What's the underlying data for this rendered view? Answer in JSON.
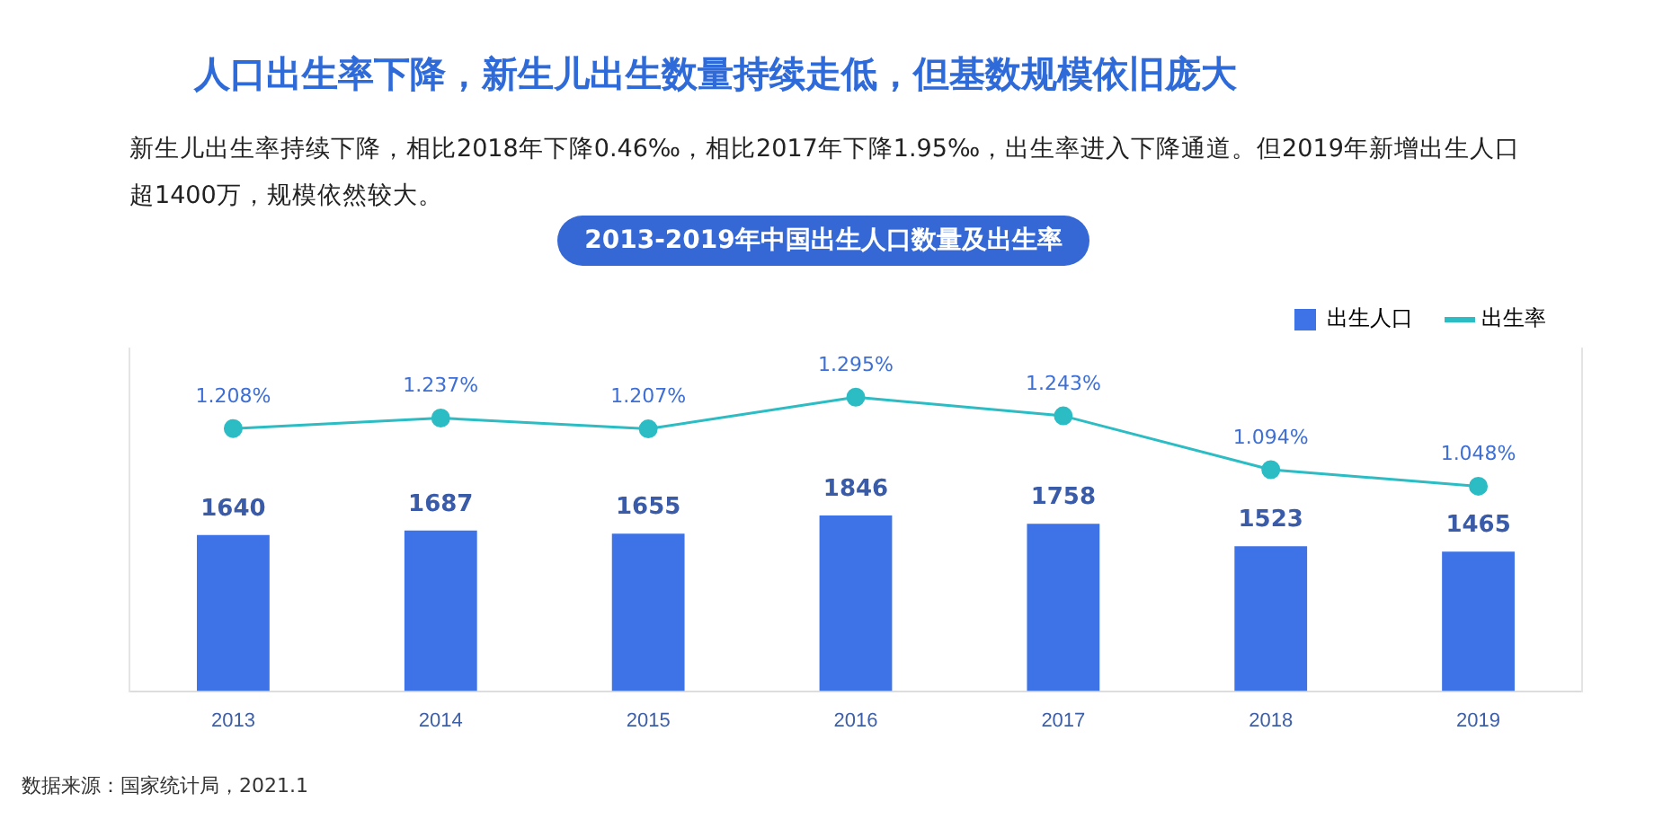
{
  "chart_data": {
    "type": "bar",
    "title": "人口出生率下降，新生儿出生数量持续走低，但基数规模依旧庞大",
    "subtitle": "新生儿出生率持续下降，相比2018年下降0.46‰，相比2017年下降1.95‰，出生率进入下降通道。但2019年新增出生人口超1400万，规模依然较大。",
    "annotations": [
      "2013-2019年中国出生人口数量及出生率",
      "数据来源：国家统计局，2021.1"
    ],
    "categories": [
      "2013",
      "2014",
      "2015",
      "2016",
      "2017",
      "2018",
      "2019"
    ],
    "series": [
      {
        "name": "出生人口",
        "color": "#3d73e6",
        "values": [
          1640,
          1687,
          1655,
          1846,
          1758,
          1523,
          1465
        ],
        "value_labels": [
          "1640",
          "1687",
          "1655",
          "1846",
          "1758",
          "1523",
          "1465"
        ]
      },
      {
        "name": "出生率",
        "type": "line",
        "axis": "y2",
        "color": "#2bbcc4",
        "values": [
          1.208,
          1.237,
          1.207,
          1.295,
          1.243,
          1.094,
          1.048
        ],
        "value_labels": [
          "1.208%",
          "1.237%",
          "1.207%",
          "1.295%",
          "1.243%",
          "1.094%",
          "1.048%"
        ]
      }
    ],
    "ylim": [
      0,
      3600
    ],
    "y2lim": [
      0.48,
      1.43
    ],
    "tick_labels": "x",
    "grid": false,
    "legend": "top right",
    "marker": "circle",
    "line_style": "solid"
  }
}
